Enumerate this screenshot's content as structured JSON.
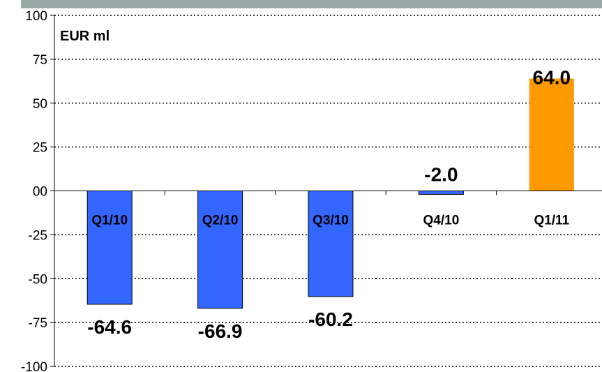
{
  "chart_data": {
    "type": "bar",
    "unit_label": "EUR ml",
    "categories": [
      "Q1/10",
      "Q2/10",
      "Q3/10",
      "Q4/10",
      "Q1/11"
    ],
    "values": [
      -64.6,
      -66.9,
      -60.2,
      -2.0,
      64.0
    ],
    "value_labels": [
      "-64.6",
      "-66.9",
      "-60.2",
      "-2.0",
      "64.0"
    ],
    "ylim": [
      -100,
      100
    ],
    "yticks": [
      100,
      75,
      50,
      25,
      0,
      -25,
      -50,
      -75,
      -100
    ],
    "ytick_labels": [
      "100",
      "75",
      "50",
      "25",
      "00",
      "-25",
      "-50",
      "-75",
      "-100"
    ],
    "grid": true,
    "colors": {
      "negative_bar": "#3366ff",
      "positive_bar": "#ff9900",
      "header_band": "#99aaa6"
    }
  }
}
